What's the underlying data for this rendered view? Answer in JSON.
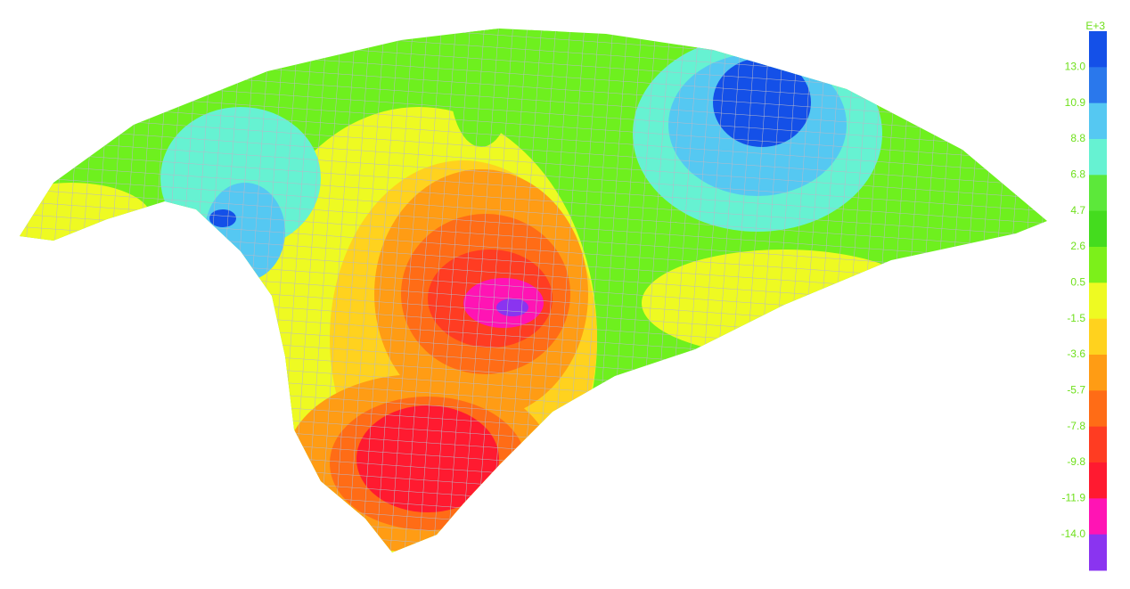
{
  "legend": {
    "unit": "E+3",
    "levels": [
      "13.0",
      "10.9",
      "8.8",
      "6.8",
      "4.7",
      "2.6",
      "0.5",
      "-1.5",
      "-3.6",
      "-5.7",
      "-7.8",
      "-9.8",
      "-11.9",
      "-14.0"
    ],
    "colors": [
      "#1450e8",
      "#2a78ec",
      "#55c8f2",
      "#66f2d2",
      "#5ce83a",
      "#44dc1e",
      "#7cf01a",
      "#eefa22",
      "#ffd21e",
      "#ff9c14",
      "#ff6c16",
      "#ff3c22",
      "#ff1a30",
      "#ff14b4",
      "#8a34f0"
    ]
  }
}
